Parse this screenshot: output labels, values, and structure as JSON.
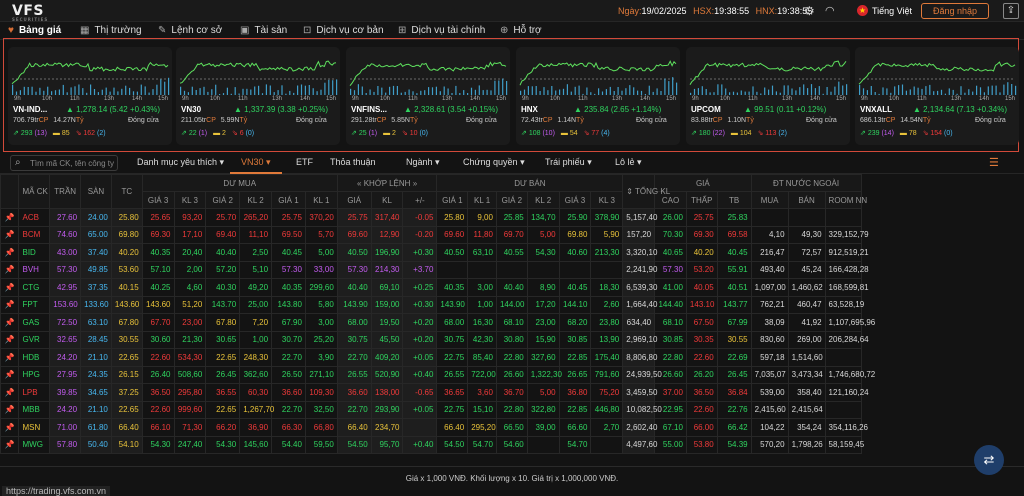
{
  "app": {
    "logo": "VFS",
    "logo_sub": "SECURITIES"
  },
  "topbar": {
    "date_label": "Ngày:",
    "date": "19/02/2025",
    "hsx_label": "HSX:",
    "hsx_time": "19:38:55",
    "hnx_label": "HNX:",
    "hnx_time": "19:38:55",
    "language": "Tiếng Việt",
    "login": "Đăng nhập"
  },
  "nav": [
    "Bảng giá",
    "Thị trường",
    "Lệnh cơ sở",
    "Tài sản",
    "Dịch vụ cơ bản",
    "Dịch vụ tài chính",
    "Hỗ trợ"
  ],
  "chart_ticks": [
    "9h",
    "10h",
    "11h",
    "13h",
    "14h",
    "15h"
  ],
  "cards": [
    {
      "name": "VN-IND...",
      "value": "1,278.14 (5.42 +0.43%)",
      "vol": "706.79tr",
      "vol_unit": "CP",
      "val": "14.27N",
      "val_unit": "Tỷ",
      "status": "Đóng cửa",
      "up": "293",
      "up_ceil": "(13)",
      "ref": "85",
      "down": "162",
      "down_floor": "(2)"
    },
    {
      "name": "VN30",
      "value": "1,337.39 (3.38 +0.25%)",
      "vol": "211.05tr",
      "vol_unit": "CP",
      "val": "5.99N",
      "val_unit": "Tỷ",
      "status": "Đóng cửa",
      "up": "22",
      "up_ceil": "(1)",
      "ref": "2",
      "down": "6",
      "down_floor": "(0)"
    },
    {
      "name": "VNFINS...",
      "value": "2,328.61 (3.54 +0.15%)",
      "vol": "291.28tr",
      "vol_unit": "CP",
      "val": "5.85N",
      "val_unit": "Tỷ",
      "status": "Đóng cửa",
      "up": "25",
      "up_ceil": "(1)",
      "ref": "2",
      "down": "10",
      "down_floor": "(0)"
    },
    {
      "name": "HNX",
      "value": "235.84 (2.65 +1.14%)",
      "vol": "72.43tr",
      "vol_unit": "CP",
      "val": "1.14N",
      "val_unit": "Tỷ",
      "status": "Đóng cửa",
      "up": "108",
      "up_ceil": "(10)",
      "ref": "54",
      "down": "77",
      "down_floor": "(4)"
    },
    {
      "name": "UPCOM",
      "value": "99.51 (0.11 +0.12%)",
      "vol": "83.88tr",
      "vol_unit": "CP",
      "val": "1.10N",
      "val_unit": "Tỷ",
      "status": "Đóng cửa",
      "up": "180",
      "up_ceil": "(22)",
      "ref": "104",
      "down": "113",
      "down_floor": "(2)"
    },
    {
      "name": "VNXALL",
      "value": "2,134.64 (7.13 +0.34%)",
      "vol": "686.13tr",
      "vol_unit": "CP",
      "val": "14.54N",
      "val_unit": "Tỷ",
      "status": "Đóng cửa",
      "up": "239",
      "up_ceil": "(14)",
      "ref": "78",
      "down": "154",
      "down_floor": "(0)"
    }
  ],
  "search": {
    "placeholder": "Tìm mã CK, tên công ty"
  },
  "filters": [
    "Danh mục yêu thích",
    "VN30",
    "ETF",
    "Thỏa thuận",
    "Ngành",
    "Chứng quyền",
    "Trái phiếu",
    "Lô lẻ"
  ],
  "table": {
    "groups": {
      "symbol": "MÃ CK",
      "ceil": "TRẦN",
      "floor": "SÀN",
      "ref": "TC",
      "bid": "DƯ MUA",
      "match": "KHỚP LỆNH",
      "ask": "DƯ BÁN",
      "total": "TỔNG KL",
      "price": "GIÁ",
      "foreign": "ĐT NƯỚC NGOÀI"
    },
    "sub": {
      "bid": [
        "GIÁ 3",
        "KL 3",
        "GIÁ 2",
        "KL 2",
        "GIÁ 1",
        "KL 1"
      ],
      "match": [
        "GIÁ",
        "KL",
        "+/-"
      ],
      "ask": [
        "GIÁ 1",
        "KL 1",
        "GIÁ 2",
        "KL 2",
        "GIÁ 3",
        "KL 3"
      ],
      "price": [
        "CAO",
        "THẤP",
        "TB"
      ],
      "foreign": [
        "MUA",
        "BÁN",
        "ROOM NN"
      ]
    },
    "rows": [
      {
        "s": "ACB",
        "c": "27.60",
        "f": "24.00",
        "r": "25.80",
        "b": [
          "25.65",
          "93,20",
          "25.70",
          "265,20",
          "25.75",
          "370,20"
        ],
        "m": [
          "25.75",
          "317,40",
          "-0.05"
        ],
        "a": [
          "25.80",
          "9,00",
          "25.85",
          "134,70",
          "25.90",
          "378,90"
        ],
        "t": "5,157,40",
        "h": "26.00",
        "l": "25.75",
        "av": "25.83",
        "fb": "",
        "fs": "",
        "fr": ""
      },
      {
        "s": "BCM",
        "c": "74.60",
        "f": "65.00",
        "r": "69.80",
        "b": [
          "69.30",
          "17,10",
          "69.40",
          "11,10",
          "69.50",
          "5,70"
        ],
        "m": [
          "69.60",
          "12,90",
          "-0.20"
        ],
        "a": [
          "69.60",
          "11,80",
          "69.70",
          "5,00",
          "69.80",
          "5,90"
        ],
        "t": "157,20",
        "h": "70.30",
        "l": "69.30",
        "av": "69.58",
        "fb": "4,10",
        "fs": "49,30",
        "fr": "329,152,79"
      },
      {
        "s": "BID",
        "c": "43.00",
        "f": "37.40",
        "r": "40.20",
        "b": [
          "40.35",
          "20,40",
          "40.40",
          "2,50",
          "40.45",
          "5,00"
        ],
        "m": [
          "40.50",
          "196,90",
          "+0.30"
        ],
        "a": [
          "40.50",
          "63,10",
          "40.55",
          "54,30",
          "40.60",
          "213,30"
        ],
        "t": "3,320,10",
        "h": "40.65",
        "l": "40.20",
        "av": "40.45",
        "fb": "216,47",
        "fs": "72,57",
        "fr": "912,519,21"
      },
      {
        "s": "BVH",
        "c": "57.30",
        "f": "49.85",
        "r": "53.60",
        "b": [
          "57.10",
          "2,00",
          "57.20",
          "5,10",
          "57.30",
          "33,00"
        ],
        "m": [
          "57.30",
          "214,30",
          "+3.70"
        ],
        "a": [
          "",
          "",
          "",
          "",
          "",
          ""
        ],
        "t": "2,241,90",
        "h": "57.30",
        "l": "53.20",
        "av": "55.91",
        "fb": "493,40",
        "fs": "45,24",
        "fr": "166,428,28"
      },
      {
        "s": "CTG",
        "c": "42.95",
        "f": "37.35",
        "r": "40.15",
        "b": [
          "40.25",
          "4,60",
          "40.30",
          "49,20",
          "40.35",
          "299,60"
        ],
        "m": [
          "40.40",
          "69,10",
          "+0.25"
        ],
        "a": [
          "40.35",
          "3,00",
          "40.40",
          "8,90",
          "40.45",
          "18,30"
        ],
        "t": "6,539,30",
        "h": "41.00",
        "l": "40.05",
        "av": "40.51",
        "fb": "1,097,00",
        "fs": "1,460,62",
        "fr": "168,599,81"
      },
      {
        "s": "FPT",
        "c": "153.60",
        "f": "133.60",
        "r": "143.60",
        "b": [
          "143.60",
          "51,20",
          "143.70",
          "25,00",
          "143.80",
          "5,80"
        ],
        "m": [
          "143.90",
          "159,00",
          "+0.30"
        ],
        "a": [
          "143.90",
          "1,00",
          "144.00",
          "17,20",
          "144.10",
          "2,60"
        ],
        "t": "1,664,40",
        "h": "144.40",
        "l": "143.10",
        "av": "143.77",
        "fb": "762,21",
        "fs": "460,47",
        "fr": "63,528,19"
      },
      {
        "s": "GAS",
        "c": "72.50",
        "f": "63.10",
        "r": "67.80",
        "b": [
          "67.70",
          "23,00",
          "67.80",
          "7,20",
          "67.90",
          "3,00"
        ],
        "m": [
          "68.00",
          "19,50",
          "+0.20"
        ],
        "a": [
          "68.00",
          "16,30",
          "68.10",
          "23,00",
          "68.20",
          "23,80"
        ],
        "t": "634,40",
        "h": "68.10",
        "l": "67.50",
        "av": "67.99",
        "fb": "38,09",
        "fs": "41,92",
        "fr": "1,107,695,96"
      },
      {
        "s": "GVR",
        "c": "32.65",
        "f": "28.45",
        "r": "30.55",
        "b": [
          "30.60",
          "21,30",
          "30.65",
          "1,00",
          "30.70",
          "25,20"
        ],
        "m": [
          "30.75",
          "45,50",
          "+0.20"
        ],
        "a": [
          "30.75",
          "42,30",
          "30.80",
          "15,90",
          "30.85",
          "13,90"
        ],
        "t": "2,969,10",
        "h": "30.85",
        "l": "30.35",
        "av": "30.55",
        "fb": "830,60",
        "fs": "269,00",
        "fr": "206,284,64"
      },
      {
        "s": "HDB",
        "c": "24.20",
        "f": "21.10",
        "r": "22.65",
        "b": [
          "22.60",
          "534,30",
          "22.65",
          "248,30",
          "22.70",
          "3,90"
        ],
        "m": [
          "22.70",
          "409,20",
          "+0.05"
        ],
        "a": [
          "22.75",
          "85,40",
          "22.80",
          "327,60",
          "22.85",
          "175,40"
        ],
        "t": "8,806,80",
        "h": "22.80",
        "l": "22.60",
        "av": "22.69",
        "fb": "597,18",
        "fs": "1,514,60",
        "fr": ""
      },
      {
        "s": "HPG",
        "c": "27.95",
        "f": "24.35",
        "r": "26.15",
        "b": [
          "26.40",
          "508,60",
          "26.45",
          "362,60",
          "26.50",
          "271,10"
        ],
        "m": [
          "26.55",
          "520,90",
          "+0.40"
        ],
        "a": [
          "26.55",
          "722,00",
          "26.60",
          "1,322,30",
          "26.65",
          "791,60"
        ],
        "t": "24,939,50",
        "h": "26.60",
        "l": "26.20",
        "av": "26.45",
        "fb": "7,035,07",
        "fs": "3,473,34",
        "fr": "1,746,680,72"
      },
      {
        "s": "LPB",
        "c": "39.85",
        "f": "34.65",
        "r": "37.25",
        "b": [
          "36.50",
          "295,80",
          "36.55",
          "60,30",
          "36.60",
          "109,30"
        ],
        "m": [
          "36.60",
          "138,00",
          "-0.65"
        ],
        "a": [
          "36.65",
          "3,60",
          "36.70",
          "5,00",
          "36.80",
          "75,20"
        ],
        "t": "3,459,50",
        "h": "37.00",
        "l": "36.50",
        "av": "36.84",
        "fb": "539,00",
        "fs": "358,40",
        "fr": "121,160,24"
      },
      {
        "s": "MBB",
        "c": "24.20",
        "f": "21.10",
        "r": "22.65",
        "b": [
          "22.60",
          "999,60",
          "22.65",
          "1,267,70",
          "22.70",
          "32,50"
        ],
        "m": [
          "22.70",
          "293,90",
          "+0.05"
        ],
        "a": [
          "22.75",
          "15,10",
          "22.80",
          "322,80",
          "22.85",
          "446,80"
        ],
        "t": "10,082,50",
        "h": "22.95",
        "l": "22.60",
        "av": "22.76",
        "fb": "2,415,60",
        "fs": "2,415,64",
        "fr": ""
      },
      {
        "s": "MSN",
        "c": "71.00",
        "f": "61.80",
        "r": "66.40",
        "b": [
          "66.10",
          "71,30",
          "66.20",
          "36,90",
          "66.30",
          "66,80"
        ],
        "m": [
          "66.40",
          "234,70",
          ""
        ],
        "a": [
          "66.40",
          "295,20",
          "66.50",
          "39,00",
          "66.60",
          "2,70"
        ],
        "t": "2,602,40",
        "h": "67.10",
        "l": "66.00",
        "av": "66.42",
        "fb": "104,22",
        "fs": "354,24",
        "fr": "354,116,26"
      },
      {
        "s": "MWG",
        "c": "57.80",
        "f": "50.40",
        "r": "54.10",
        "b": [
          "54.30",
          "247,40",
          "54.30",
          "145,60",
          "54.40",
          "59,50"
        ],
        "m": [
          "54.50",
          "95,70",
          "+0.40"
        ],
        "a": [
          "54.50",
          "54.70",
          "54.60",
          "",
          "54.70",
          ""
        ],
        "t": "4,497,60",
        "h": "55.00",
        "l": "53.80",
        "av": "54.39",
        "fb": "570,20",
        "fs": "1,798,26",
        "fr": "58,159,45"
      }
    ]
  },
  "footer": {
    "note": "Giá x 1,000 VNĐ. Khối lượng x 10. Giá trị x 1,000,000 VNĐ.",
    "url": "https://trading.vfs.com.vn"
  },
  "colors": {
    "up": "#2fd35f",
    "down": "#ef3a3a",
    "ref": "#e8c23a",
    "ceil": "#c35cf0",
    "floor": "#47b7f0",
    "accent": "#e07a3a"
  },
  "icons": {
    "nav": [
      "heart-icon",
      "table-icon",
      "edit-icon",
      "wallet-icon",
      "box-icon",
      "finance-icon",
      "support-icon"
    ]
  }
}
